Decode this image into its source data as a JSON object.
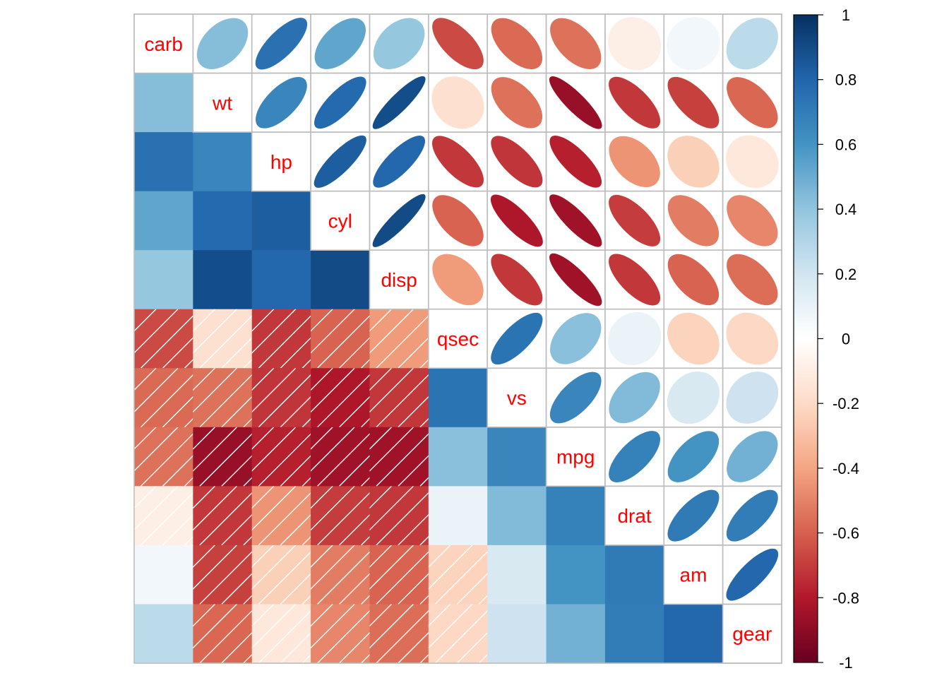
{
  "chart_data": {
    "type": "heatmap",
    "variables": [
      "carb",
      "wt",
      "hp",
      "cyl",
      "disp",
      "qsec",
      "vs",
      "mpg",
      "drat",
      "am",
      "gear"
    ],
    "matrix": [
      [
        1.0,
        0.43,
        0.75,
        0.53,
        0.39,
        -0.66,
        -0.57,
        -0.55,
        -0.09,
        0.06,
        0.27
      ],
      [
        0.43,
        1.0,
        0.66,
        0.78,
        0.89,
        -0.17,
        -0.55,
        -0.87,
        -0.71,
        -0.69,
        -0.58
      ],
      [
        0.75,
        0.66,
        1.0,
        0.83,
        0.79,
        -0.71,
        -0.72,
        -0.78,
        -0.45,
        -0.24,
        -0.13
      ],
      [
        0.53,
        0.78,
        0.83,
        1.0,
        0.9,
        -0.59,
        -0.81,
        -0.85,
        -0.7,
        -0.52,
        -0.49
      ],
      [
        0.39,
        0.89,
        0.79,
        0.9,
        1.0,
        -0.43,
        -0.71,
        -0.85,
        -0.71,
        -0.59,
        -0.56
      ],
      [
        -0.66,
        -0.17,
        -0.71,
        -0.59,
        -0.43,
        1.0,
        0.74,
        0.42,
        0.09,
        -0.23,
        -0.21
      ],
      [
        -0.57,
        -0.55,
        -0.72,
        -0.81,
        -0.71,
        0.74,
        1.0,
        0.66,
        0.44,
        0.17,
        0.21
      ],
      [
        -0.55,
        -0.87,
        -0.78,
        -0.85,
        -0.85,
        0.42,
        0.66,
        1.0,
        0.68,
        0.6,
        0.48
      ],
      [
        -0.09,
        -0.71,
        -0.45,
        -0.7,
        -0.71,
        0.09,
        0.44,
        0.68,
        1.0,
        0.71,
        0.7
      ],
      [
        0.06,
        -0.69,
        -0.24,
        -0.52,
        -0.59,
        -0.23,
        0.17,
        0.6,
        0.71,
        1.0,
        0.79
      ],
      [
        0.27,
        -0.58,
        -0.13,
        -0.49,
        -0.56,
        -0.21,
        0.21,
        0.48,
        0.7,
        0.79,
        1.0
      ]
    ],
    "upper_triangle_glyph": "ellipse",
    "lower_triangle_glyph": "square",
    "lower_triangle_negative_pattern": "diagonal-hatch",
    "diagonal": "variable-names",
    "color_scale": {
      "range": [
        -1,
        1
      ],
      "ticks": [
        "1",
        "0.8",
        "0.6",
        "0.4",
        "0.2",
        "0",
        "-0.2",
        "-0.4",
        "-0.6",
        "-0.8",
        "-1"
      ],
      "palette": [
        "#67001F",
        "#B2182B",
        "#D6604D",
        "#F4A582",
        "#FDDBC7",
        "#FFFFFF",
        "#D1E5F0",
        "#92C5DE",
        "#4393C3",
        "#2166AC",
        "#053061"
      ]
    },
    "label_color": "#FF0000",
    "grid_color": "#BEBEBE"
  }
}
